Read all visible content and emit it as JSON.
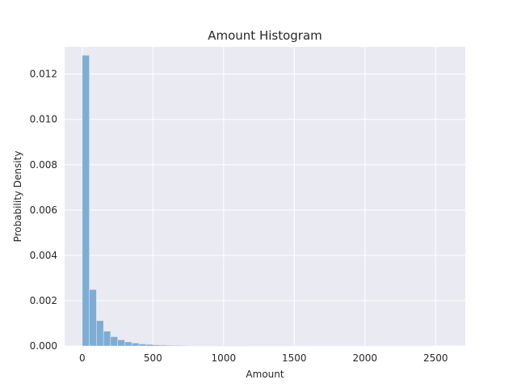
{
  "chart_data": {
    "type": "bar",
    "title": "Amount Histogram",
    "xlabel": "Amount",
    "ylabel": "Probability Density",
    "xlim": [
      -125,
      2710
    ],
    "ylim": [
      0,
      0.0132
    ],
    "xticks": [
      0,
      500,
      1000,
      1500,
      2000,
      2500
    ],
    "xtick_labels": [
      "0",
      "500",
      "1000",
      "1500",
      "2000",
      "2500"
    ],
    "yticks": [
      0,
      0.002,
      0.004,
      0.006,
      0.008,
      0.01,
      0.012
    ],
    "ytick_labels": [
      "0.000",
      "0.002",
      "0.004",
      "0.006",
      "0.008",
      "0.010",
      "0.012"
    ],
    "grid": true,
    "bin_start": 0,
    "bin_width": 50,
    "values": [
      0.01283,
      0.00249,
      0.00112,
      0.00065,
      0.00041,
      0.00027,
      0.00018,
      0.00013,
      9e-05,
      7e-05,
      5e-05,
      4e-05,
      3.2e-05,
      2.6e-05,
      2e-05,
      1.6e-05,
      1.2e-05,
      1e-05,
      8e-06,
      7e-06,
      6e-06,
      5e-06,
      4e-06,
      3e-06,
      3e-06,
      2.5e-06,
      2e-06,
      2e-06,
      1.5e-06,
      1.5e-06,
      1.2e-06,
      1e-06,
      1e-06,
      8e-07,
      7e-07,
      6e-07,
      5e-07,
      5e-07,
      4e-07,
      4e-07,
      3e-07,
      3e-07,
      2e-07,
      2e-07,
      2e-07,
      1e-07,
      1e-07,
      1e-07,
      1e-07,
      1e-07
    ],
    "colors": {
      "bar": "#7eadd4",
      "plot_background": "#eaeaf2",
      "grid": "#ffffff",
      "text": "#262626"
    }
  }
}
